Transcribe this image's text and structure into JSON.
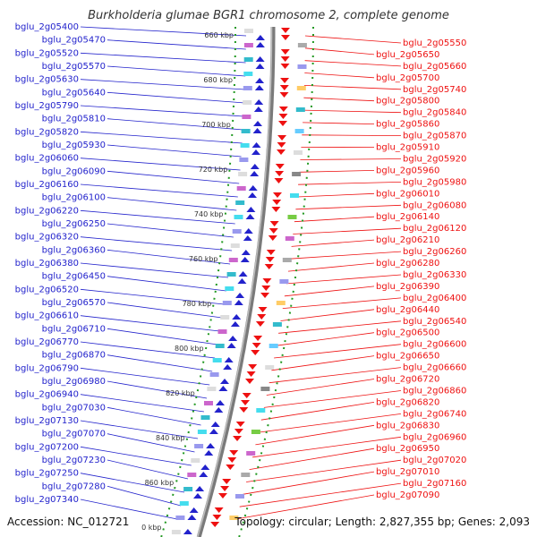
{
  "title": "Burkholderia glumae BGR1 chromosome 2, complete genome",
  "footer": {
    "accession": "Accession: NC_012721",
    "stats": "Topology: circular; Length: 2,827,355 bp; Genes: 2,093"
  },
  "colors": {
    "forward": "#2222cc",
    "reverse": "#ee1111",
    "ruler": "#229922",
    "backbone": "#7a7a7a"
  },
  "kbp_ticks": [
    "660 kbp",
    "680 kbp",
    "700 kbp",
    "720 kbp",
    "740 kbp",
    "760 kbp",
    "780 kbp",
    "800 kbp",
    "820 kbp",
    "840 kbp",
    "860 kbp",
    "0 kbp"
  ],
  "left_labels": [
    "bglu_2g05400",
    "bglu_2g05470",
    "bglu_2g05520",
    "bglu_2g05570",
    "bglu_2g05630",
    "bglu_2g05640",
    "bglu_2g05790",
    "bglu_2g05810",
    "bglu_2g05820",
    "bglu_2g05930",
    "bglu_2g06060",
    "bglu_2g06090",
    "bglu_2g06160",
    "bglu_2g06100",
    "bglu_2g06220",
    "bglu_2g06250",
    "bglu_2g06320",
    "bglu_2g06360",
    "bglu_2g06380",
    "bglu_2g06450",
    "bglu_2g06520",
    "bglu_2g06570",
    "bglu_2g06610",
    "bglu_2g06710",
    "bglu_2g06770",
    "bglu_2g06870",
    "bglu_2g06790",
    "bglu_2g06980",
    "bglu_2g06940",
    "bglu_2g07030",
    "bglu_2g07130",
    "bglu_2g07070",
    "bglu_2g07200",
    "bglu_2g07230",
    "bglu_2g07250",
    "bglu_2g07280",
    "bglu_2g07340"
  ],
  "right_labels": [
    "bglu_2g05550",
    "bglu_2g05650",
    "bglu_2g05660",
    "bglu_2g05700",
    "bglu_2g05740",
    "bglu_2g05800",
    "bglu_2g05840",
    "bglu_2g05860",
    "bglu_2g05870",
    "bglu_2g05910",
    "bglu_2g05920",
    "bglu_2g05960",
    "bglu_2g05980",
    "bglu_2g06010",
    "bglu_2g06080",
    "bglu_2g06140",
    "bglu_2g06120",
    "bglu_2g06210",
    "bglu_2g06260",
    "bglu_2g06280",
    "bglu_2g06330",
    "bglu_2g06390",
    "bglu_2g06400",
    "bglu_2g06440",
    "bglu_2g06540",
    "bglu_2g06500",
    "bglu_2g06600",
    "bglu_2g06650",
    "bglu_2g06660",
    "bglu_2g06720",
    "bglu_2g06860",
    "bglu_2g06820",
    "bglu_2g06740",
    "bglu_2g06830",
    "bglu_2g06960",
    "bglu_2g06950",
    "bglu_2g07020",
    "bglu_2g07010",
    "bglu_2g07160",
    "bglu_2g07090"
  ]
}
